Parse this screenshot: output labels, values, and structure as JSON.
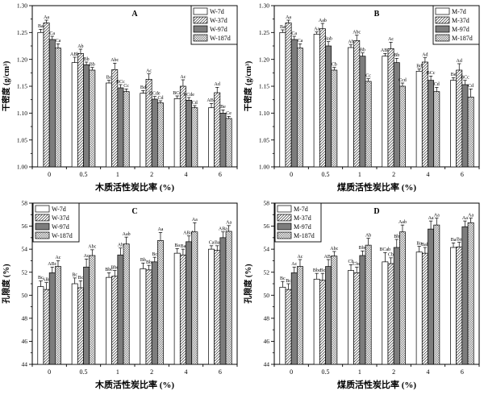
{
  "figure_title": "",
  "colors": {
    "axis": "#000000",
    "bar_plain": "#ffffff",
    "bar_solid_gray": "#7d7d7d",
    "hatch_line": "#000000",
    "cross_line": "#3a3a3a",
    "background": "#ffffff"
  },
  "chart_data": [
    {
      "panel_label": "A",
      "type": "bar",
      "title": "A",
      "xlabel": "木质活性炭比率 (%)",
      "ylabel": "干密度 (g/cm³)",
      "ylim": [
        1.0,
        1.3
      ],
      "ytick_step": 0.05,
      "y_decimals": 2,
      "grid": false,
      "legend_position": "top-right",
      "categories": [
        "0",
        "0.5",
        "1",
        "2",
        "4",
        "6"
      ],
      "series": [
        {
          "name": "W-7d",
          "pattern": "plain",
          "values": [
            1.25,
            1.194,
            1.156,
            1.137,
            1.127,
            1.11
          ],
          "errors": [
            0.006,
            0.01,
            0.005,
            0.005,
            0.005,
            0.008
          ],
          "sig_labels": [
            "Ba",
            "ABb",
            "Bc",
            "Bd",
            "BCd",
            "ABd"
          ]
        },
        {
          "name": "W-37d",
          "pattern": "diag",
          "values": [
            1.268,
            1.211,
            1.181,
            1.163,
            1.15,
            1.138
          ],
          "errors": [
            0.005,
            0.008,
            0.012,
            0.01,
            0.012,
            0.01
          ],
          "sig_labels": [
            "Aa",
            "Ab",
            "Abc",
            "Ac",
            "Ac",
            "Ad"
          ]
        },
        {
          "name": "W-97d",
          "pattern": "solid",
          "values": [
            1.237,
            1.19,
            1.147,
            1.126,
            1.124,
            1.1
          ],
          "errors": [
            0.006,
            0.005,
            0.006,
            0.005,
            0.005,
            0.006
          ],
          "sig_labels": [
            "Ca",
            "Bb",
            "BCc",
            "BCde",
            "BCde",
            "Be"
          ]
        },
        {
          "name": "W-187d",
          "pattern": "cross",
          "values": [
            1.221,
            1.18,
            1.14,
            1.119,
            1.11,
            1.09
          ],
          "errors": [
            0.008,
            0.005,
            0.005,
            0.004,
            0.004,
            0.004
          ],
          "sig_labels": [
            "Ca",
            "Bb",
            "Cc",
            "Cd",
            "Cd",
            "Ce"
          ]
        }
      ]
    },
    {
      "panel_label": "B",
      "type": "bar",
      "title": "B",
      "xlabel": "煤质活性炭比率 (%)",
      "ylabel": "干密度 (g/cm³)",
      "ylim": [
        1.0,
        1.3
      ],
      "ytick_step": 0.05,
      "y_decimals": 2,
      "grid": false,
      "legend_position": "top-right",
      "categories": [
        "0",
        "0.5",
        "1",
        "2",
        "4",
        "6"
      ],
      "series": [
        {
          "name": "M-7d",
          "pattern": "plain",
          "values": [
            1.25,
            1.247,
            1.222,
            1.206,
            1.178,
            1.161
          ],
          "errors": [
            0.005,
            0.004,
            0.005,
            0.005,
            0.004,
            0.005
          ],
          "sig_labels": [
            "Ba",
            "Aa",
            "Ab",
            "ABc",
            "Bd",
            "Be"
          ]
        },
        {
          "name": "M-37d",
          "pattern": "diag",
          "values": [
            1.268,
            1.257,
            1.235,
            1.22,
            1.195,
            1.18
          ],
          "errors": [
            0.005,
            0.01,
            0.01,
            0.012,
            0.008,
            0.012
          ],
          "sig_labels": [
            "Aa",
            "Aab",
            "Abc",
            "Ac",
            "Ad",
            "Ad"
          ]
        },
        {
          "name": "M-97d",
          "pattern": "solid",
          "values": [
            1.237,
            1.225,
            1.206,
            1.194,
            1.161,
            1.153
          ],
          "errors": [
            0.006,
            0.008,
            0.006,
            0.008,
            0.008,
            0.008
          ],
          "sig_labels": [
            "Ca",
            "Bab",
            "Bb",
            "Bb",
            "BCc",
            "BCc"
          ]
        },
        {
          "name": "M-187d",
          "pattern": "cross",
          "values": [
            1.221,
            1.18,
            1.159,
            1.15,
            1.14,
            1.13
          ],
          "errors": [
            0.008,
            0.005,
            0.005,
            0.006,
            0.008,
            0.015
          ],
          "sig_labels": [
            "Ca",
            "Cb",
            "Cc",
            "Ccd",
            "Cd",
            "Cd"
          ]
        }
      ]
    },
    {
      "panel_label": "C",
      "type": "bar",
      "title": "C",
      "xlabel": "木质活性炭比率 (%)",
      "ylabel": "孔隙度 (%)",
      "ylim": [
        44,
        58
      ],
      "ytick_step": 2,
      "y_decimals": 0,
      "grid": false,
      "legend_position": "top-left",
      "categories": [
        "0",
        "0.5",
        "1",
        "2",
        "4",
        "6"
      ],
      "series": [
        {
          "name": "W-7d",
          "pattern": "plain",
          "values": [
            50.75,
            51.0,
            51.55,
            52.3,
            53.65,
            54.0
          ],
          "errors": [
            0.5,
            0.5,
            0.4,
            0.5,
            0.4,
            0.3
          ],
          "sig_labels": [
            "Bc",
            "Bc",
            "Bbc",
            "Bb",
            "Ba",
            "Ca"
          ]
        },
        {
          "name": "W-37d",
          "pattern": "diag",
          "values": [
            50.5,
            50.65,
            51.65,
            52.2,
            53.5,
            53.9
          ],
          "errors": [
            0.6,
            0.6,
            0.5,
            0.4,
            0.5,
            0.4
          ],
          "sig_labels": [
            "ABc",
            "Bc",
            "Bbc",
            "Bb",
            "Ba",
            "Ba"
          ]
        },
        {
          "name": "W-97d",
          "pattern": "solid",
          "values": [
            51.95,
            52.45,
            53.5,
            52.9,
            54.65,
            55.0
          ],
          "errors": [
            0.5,
            0.7,
            0.6,
            0.4,
            0.5,
            0.5
          ],
          "sig_labels": [
            "ABc",
            "Ac",
            "Ab",
            "Bc",
            "ABab",
            "ABa"
          ]
        },
        {
          "name": "W-187d",
          "pattern": "cross",
          "values": [
            52.5,
            53.45,
            54.45,
            54.75,
            55.5,
            55.55
          ],
          "errors": [
            0.5,
            0.5,
            0.6,
            0.7,
            0.8,
            0.5
          ],
          "sig_labels": [
            "Ac",
            "Abc",
            "Aab",
            "Aa",
            "Aa",
            "Aa"
          ]
        }
      ]
    },
    {
      "panel_label": "D",
      "type": "bar",
      "title": "D",
      "xlabel": "煤质活性炭比率 (%)",
      "ylabel": "孔隙度 (%)",
      "ylim": [
        44,
        58
      ],
      "ytick_step": 2,
      "y_decimals": 0,
      "grid": false,
      "legend_position": "top-left",
      "categories": [
        "0",
        "0.5",
        "1",
        "2",
        "4",
        "6"
      ],
      "series": [
        {
          "name": "M-7d",
          "pattern": "plain",
          "values": [
            50.7,
            51.4,
            52.15,
            52.9,
            53.75,
            54.15
          ],
          "errors": [
            0.5,
            0.5,
            0.5,
            0.8,
            0.5,
            0.4
          ],
          "sig_labels": [
            "Bc",
            "Bbc",
            "Cb",
            "BCab",
            "Ba",
            "Ba"
          ]
        },
        {
          "name": "M-37d",
          "pattern": "diag",
          "values": [
            50.5,
            51.3,
            51.95,
            52.75,
            53.65,
            54.2
          ],
          "errors": [
            0.5,
            0.6,
            0.5,
            0.5,
            0.5,
            0.4
          ],
          "sig_labels": [
            "Bc",
            "Bc",
            "Cbc",
            "Cb",
            "Bab",
            "Ba"
          ]
        },
        {
          "name": "M-97d",
          "pattern": "solid",
          "values": [
            51.95,
            52.5,
            53.45,
            54.15,
            55.75,
            55.95
          ],
          "errors": [
            0.5,
            0.6,
            0.4,
            0.7,
            0.7,
            0.5
          ],
          "sig_labels": [
            "Ac",
            "ABc",
            "Bbc",
            "Bb",
            "Aa",
            "Aa"
          ]
        },
        {
          "name": "M-187d",
          "pattern": "cross",
          "values": [
            52.5,
            53.4,
            54.35,
            55.5,
            56.1,
            56.3
          ],
          "errors": [
            0.6,
            0.4,
            0.6,
            0.6,
            0.6,
            0.4
          ],
          "sig_labels": [
            "Ac",
            "Abc",
            "Ab",
            "Aab",
            "Aa",
            "Aa"
          ]
        }
      ]
    }
  ]
}
